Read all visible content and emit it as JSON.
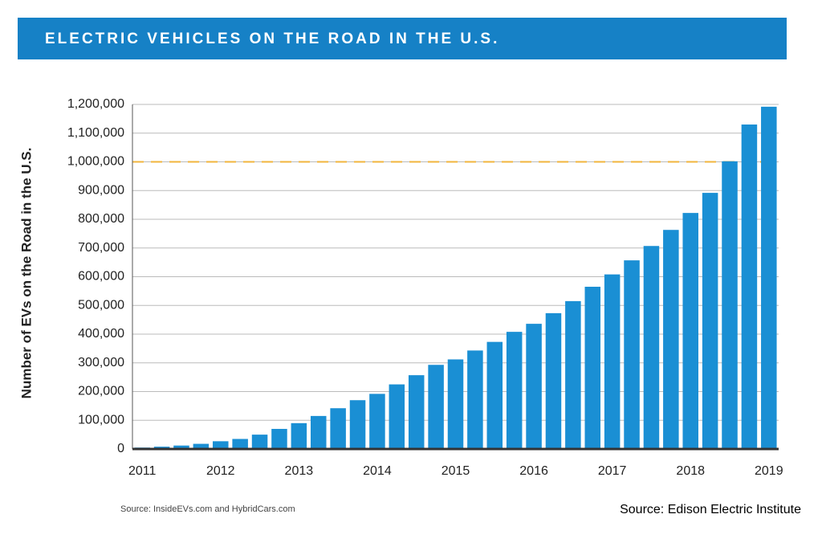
{
  "chart_data": {
    "type": "bar",
    "title": "ELECTRIC VEHICLES ON THE ROAD IN THE U.S.",
    "y_label": "Number of EVs on the Road in the U.S.",
    "source_note": "Source: InsideEVs.com and HybridCars.com",
    "source_credit": "Source: Edison Electric Institute",
    "categories": [
      "2011",
      null,
      null,
      null,
      "2012",
      null,
      null,
      null,
      "2013",
      null,
      null,
      null,
      "2014",
      null,
      null,
      null,
      "2015",
      null,
      null,
      null,
      "2016",
      null,
      null,
      null,
      "2017",
      null,
      null,
      null,
      "2018",
      null,
      null,
      null,
      "2019"
    ],
    "values": [
      5000,
      8000,
      12000,
      18000,
      27000,
      35000,
      50000,
      70000,
      90000,
      115000,
      142000,
      170000,
      192000,
      225000,
      257000,
      293000,
      312000,
      343000,
      373000,
      408000,
      436000,
      473000,
      515000,
      565000,
      608000,
      657000,
      707000,
      763000,
      822000,
      892000,
      1002000,
      1130000,
      1192000
    ],
    "color": "#1a8fd4",
    "ylim": [
      0,
      1200000
    ],
    "yticks": [
      0,
      {
        "value": 100000,
        "label": "100,000"
      },
      {
        "value": 200000,
        "label": "200,000"
      },
      {
        "value": 300000,
        "label": "300,000"
      },
      {
        "value": 400000,
        "label": "400,000"
      },
      {
        "value": 500000,
        "label": "500,000"
      },
      {
        "value": 600000,
        "label": "600,000"
      },
      {
        "value": 700000,
        "label": "700,000"
      },
      {
        "value": 800000,
        "label": "800,000"
      },
      {
        "value": 900000,
        "label": "900,000"
      },
      {
        "value": 1000000,
        "label": "1,000,000"
      },
      {
        "value": 1100000,
        "label": "1,100,000"
      },
      {
        "value": 1200000,
        "label": "1,200,000"
      }
    ],
    "grid": true,
    "reference_line": {
      "value": 1000000,
      "color": "#f2b53c"
    }
  }
}
